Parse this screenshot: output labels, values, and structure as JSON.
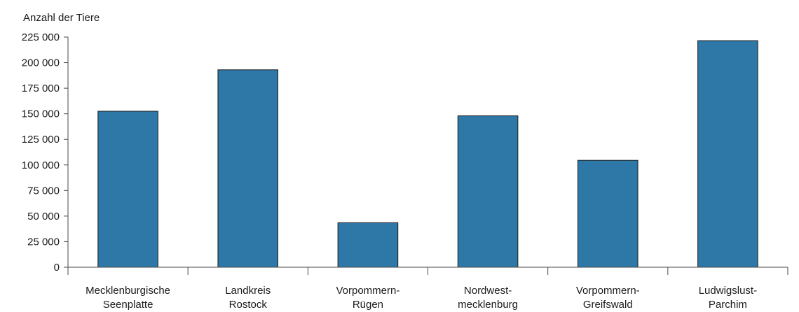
{
  "chart_data": {
    "type": "bar",
    "title": "",
    "ylabel": "Anzahl der Tiere",
    "xlabel": "",
    "ylim": [
      0,
      225000
    ],
    "yticks": [
      {
        "value": 0,
        "label": "0"
      },
      {
        "value": 25000,
        "label": "25 000"
      },
      {
        "value": 50000,
        "label": "50 000"
      },
      {
        "value": 75000,
        "label": "75 000"
      },
      {
        "value": 100000,
        "label": "100 000"
      },
      {
        "value": 125000,
        "label": "125 000"
      },
      {
        "value": 150000,
        "label": "150 000"
      },
      {
        "value": 175000,
        "label": "175 000"
      },
      {
        "value": 200000,
        "label": "200 000"
      },
      {
        "value": 225000,
        "label": "225 000"
      }
    ],
    "categories": [
      [
        "Mecklenburgische",
        "Seenplatte"
      ],
      [
        "Landkreis",
        "Rostock"
      ],
      [
        "Vorpommern-",
        "Rügen"
      ],
      [
        "Nordwest-",
        "mecklenburg"
      ],
      [
        "Vorpommern-",
        "Greifswald"
      ],
      [
        "Ludwigslust-",
        "Parchim"
      ]
    ],
    "values": [
      152500,
      193000,
      43500,
      148000,
      104500,
      221500
    ],
    "bar_color": "#2e78a8",
    "grid": false,
    "legend": "none"
  }
}
